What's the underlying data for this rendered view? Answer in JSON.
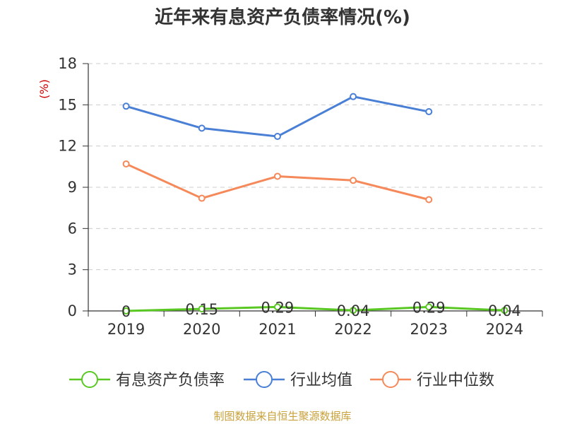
{
  "chart_data": {
    "type": "line",
    "title": "近年来有息资产负债率情况(%)",
    "ylabel": "(%)",
    "categories": [
      "2019",
      "2020",
      "2021",
      "2022",
      "2023",
      "2024"
    ],
    "yticks": [
      "0",
      "3",
      "6",
      "9",
      "12",
      "15",
      "18"
    ],
    "ylim": [
      0,
      18
    ],
    "grid": true,
    "legend_position": "bottom",
    "series": [
      {
        "name": "有息资产负债率",
        "color": "#5ac823",
        "values": [
          0,
          0.15,
          0.29,
          0.04,
          0.29,
          0.04
        ],
        "labels": [
          "0",
          "0.15",
          "0.29",
          "0.04",
          "0.29",
          "0.04"
        ]
      },
      {
        "name": "行业均值",
        "color": "#4a7fd6",
        "values": [
          14.9,
          13.3,
          12.7,
          15.6,
          14.5,
          null
        ]
      },
      {
        "name": "行业中位数",
        "color": "#f5895a",
        "values": [
          10.7,
          8.2,
          9.8,
          9.5,
          8.1,
          null
        ]
      }
    ],
    "ylabel_color": "#cc0000"
  },
  "source": "制图数据来自恒生聚源数据库"
}
